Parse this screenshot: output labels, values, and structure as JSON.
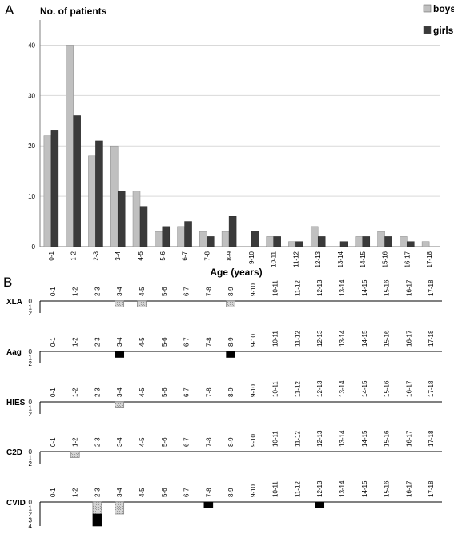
{
  "panel_a_letter": "A",
  "panel_b_letter": "B",
  "chart_data": [
    {
      "type": "bar",
      "title": "No. of patients",
      "xlabel": "Age (years)",
      "ylabel": "No. of patients",
      "ylim": [
        0,
        45
      ],
      "yticks": [
        0,
        10,
        20,
        30,
        40
      ],
      "grid": true,
      "legend_position": "top-right",
      "categories": [
        "0-1",
        "1-2",
        "2-3",
        "3-4",
        "4-5",
        "5-6",
        "6-7",
        "7-8",
        "8-9",
        "9-10",
        "10-11",
        "11-12",
        "12-13",
        "13-14",
        "14-15",
        "15-16",
        "16-17",
        "17-18"
      ],
      "series": [
        {
          "name": "boys",
          "color": "#c0c0c0",
          "values": [
            22,
            40,
            18,
            20,
            11,
            3,
            4,
            3,
            3,
            0,
            2,
            1,
            4,
            0,
            2,
            3,
            2,
            1
          ]
        },
        {
          "name": "girls",
          "color": "#3a3a3a",
          "values": [
            23,
            26,
            21,
            11,
            8,
            4,
            5,
            2,
            6,
            3,
            2,
            1,
            2,
            1,
            2,
            2,
            1,
            0
          ]
        }
      ]
    },
    {
      "type": "bar",
      "categories": [
        "0-1",
        "1-2",
        "2-3",
        "3-4",
        "4-5",
        "5-6",
        "6-7",
        "7-8",
        "8-9",
        "9-10",
        "10-11",
        "11-12",
        "12-13",
        "13-14",
        "14-15",
        "15-16",
        "16-17",
        "17-18"
      ],
      "rows": [
        {
          "label": "XLA",
          "yticks": [
            "0",
            "1",
            "2"
          ],
          "max": 2,
          "boys": [
            0,
            0,
            0,
            1,
            1,
            0,
            0,
            0,
            1,
            0,
            0,
            0,
            0,
            0,
            0,
            0,
            0,
            0
          ],
          "girls": [
            0,
            0,
            0,
            0,
            0,
            0,
            0,
            0,
            0,
            0,
            0,
            0,
            0,
            0,
            0,
            0,
            0,
            0
          ]
        },
        {
          "label": "Aag",
          "yticks": [
            "0",
            "1",
            "2"
          ],
          "max": 2,
          "boys": [
            0,
            0,
            0,
            0,
            0,
            0,
            0,
            0,
            0,
            0,
            0,
            0,
            0,
            0,
            0,
            0,
            0,
            0
          ],
          "girls": [
            0,
            0,
            0,
            1,
            0,
            0,
            0,
            0,
            1,
            0,
            0,
            0,
            0,
            0,
            0,
            0,
            0,
            0
          ]
        },
        {
          "label": "HIES",
          "yticks": [
            "0",
            "1",
            "2"
          ],
          "max": 2,
          "boys": [
            0,
            0,
            0,
            1,
            0,
            0,
            0,
            0,
            0,
            0,
            0,
            0,
            0,
            0,
            0,
            0,
            0,
            0
          ],
          "girls": [
            0,
            0,
            0,
            0,
            0,
            0,
            0,
            0,
            0,
            0,
            0,
            0,
            0,
            0,
            0,
            0,
            0,
            0
          ]
        },
        {
          "label": "C2D",
          "yticks": [
            "0",
            "1",
            "2"
          ],
          "max": 2,
          "boys": [
            0,
            1,
            0,
            0,
            0,
            0,
            0,
            0,
            0,
            0,
            0,
            0,
            0,
            0,
            0,
            0,
            0,
            0
          ],
          "girls": [
            0,
            0,
            0,
            0,
            0,
            0,
            0,
            0,
            0,
            0,
            0,
            0,
            0,
            0,
            0,
            0,
            0,
            0
          ]
        },
        {
          "label": "CVID",
          "yticks": [
            "0",
            "1",
            "2",
            "3",
            "4"
          ],
          "max": 4,
          "boys": [
            0,
            0,
            2,
            2,
            0,
            0,
            0,
            0,
            0,
            0,
            0,
            0,
            0,
            0,
            0,
            0,
            0,
            0
          ],
          "girls": [
            0,
            0,
            2,
            0,
            0,
            0,
            0,
            1,
            0,
            0,
            0,
            0,
            1,
            0,
            0,
            0,
            0,
            0
          ]
        }
      ]
    }
  ]
}
